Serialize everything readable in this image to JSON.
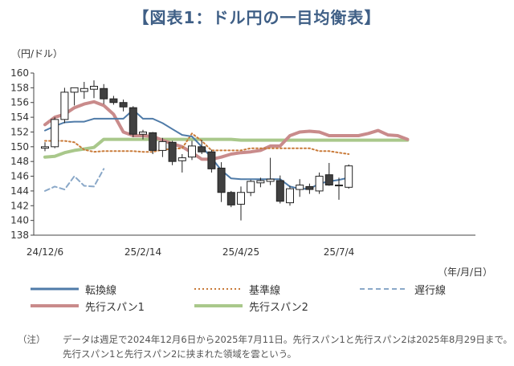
{
  "page_title": "【図表1：ドル円の一目均衡表】",
  "note": {
    "label": "（注）",
    "text": "データは週足で2024年12月6日から2025年7月11日。先行スパン1と先行スパン2は2025年8月29日まで。先行スパン1と先行スパン2に挟まれた領域を雲という。"
  },
  "colors": {
    "up_candle": "#ffffff",
    "down_candle": "#404040",
    "tenkan": "#4f7ba8",
    "kijun": "#c97b3a",
    "chikou": "#8aa8c8",
    "span1": "#c98b8b",
    "span2": "#a9c88b"
  },
  "chart_data": {
    "type": "candlestick",
    "ylabel": "（円/ドル）",
    "xlabel": "（年/月/日）",
    "ylim": [
      138,
      160
    ],
    "y_ticks": [
      138,
      140,
      142,
      144,
      146,
      148,
      150,
      152,
      154,
      156,
      158,
      160
    ],
    "x_ticks": [
      {
        "index": 0,
        "label": "24/12/6"
      },
      {
        "index": 10,
        "label": "25/2/14"
      },
      {
        "index": 20,
        "label": "25/4/25"
      },
      {
        "index": 30,
        "label": "25/7/4"
      }
    ],
    "total_periods": 38,
    "candles": [
      {
        "open": 149.8,
        "high": 150.6,
        "low": 149.4,
        "close": 150.0
      },
      {
        "open": 150.0,
        "high": 154.0,
        "low": 149.8,
        "close": 153.7
      },
      {
        "open": 153.7,
        "high": 158.0,
        "low": 153.2,
        "close": 157.4
      },
      {
        "open": 157.4,
        "high": 158.0,
        "low": 155.6,
        "close": 158.0
      },
      {
        "open": 157.5,
        "high": 158.8,
        "low": 156.5,
        "close": 157.9
      },
      {
        "open": 157.8,
        "high": 159.0,
        "low": 156.6,
        "close": 158.2
      },
      {
        "open": 157.9,
        "high": 158.5,
        "low": 155.8,
        "close": 156.5
      },
      {
        "open": 156.5,
        "high": 156.9,
        "low": 155.7,
        "close": 156.0
      },
      {
        "open": 156.0,
        "high": 156.4,
        "low": 154.8,
        "close": 155.4
      },
      {
        "open": 155.3,
        "high": 155.5,
        "low": 151.3,
        "close": 151.7
      },
      {
        "open": 151.7,
        "high": 152.3,
        "low": 151.0,
        "close": 152.0
      },
      {
        "open": 151.9,
        "high": 152.0,
        "low": 149.0,
        "close": 149.5
      },
      {
        "open": 149.5,
        "high": 151.2,
        "low": 148.6,
        "close": 150.7
      },
      {
        "open": 150.6,
        "high": 150.8,
        "low": 147.5,
        "close": 148.0
      },
      {
        "open": 148.1,
        "high": 149.0,
        "low": 146.5,
        "close": 148.5
      },
      {
        "open": 148.6,
        "high": 150.8,
        "low": 148.2,
        "close": 150.1
      },
      {
        "open": 150.0,
        "high": 150.9,
        "low": 149.0,
        "close": 149.3
      },
      {
        "open": 149.3,
        "high": 149.6,
        "low": 146.5,
        "close": 147.0
      },
      {
        "open": 147.1,
        "high": 147.9,
        "low": 142.5,
        "close": 143.8
      },
      {
        "open": 143.8,
        "high": 144.0,
        "low": 141.8,
        "close": 142.1
      },
      {
        "open": 142.2,
        "high": 144.6,
        "low": 140.0,
        "close": 143.8
      },
      {
        "open": 143.8,
        "high": 145.5,
        "low": 143.3,
        "close": 145.3
      },
      {
        "open": 145.1,
        "high": 145.8,
        "low": 144.5,
        "close": 145.4
      },
      {
        "open": 145.3,
        "high": 148.5,
        "low": 144.8,
        "close": 145.6
      },
      {
        "open": 145.4,
        "high": 146.1,
        "low": 142.3,
        "close": 142.6
      },
      {
        "open": 142.4,
        "high": 144.7,
        "low": 142.0,
        "close": 144.3
      },
      {
        "open": 144.2,
        "high": 145.6,
        "low": 143.2,
        "close": 144.8
      },
      {
        "open": 144.6,
        "high": 145.0,
        "low": 143.6,
        "close": 144.2
      },
      {
        "open": 144.0,
        "high": 146.5,
        "low": 143.6,
        "close": 146.0
      },
      {
        "open": 146.2,
        "high": 147.8,
        "low": 144.7,
        "close": 144.8
      },
      {
        "open": 144.8,
        "high": 145.8,
        "low": 142.8,
        "close": 144.7
      },
      {
        "open": 144.5,
        "high": 147.6,
        "low": 144.3,
        "close": 147.4
      }
    ],
    "series": [
      {
        "name": "転換線",
        "key": "tenkan",
        "style": "solid",
        "values": [
          152.2,
          152.8,
          153.3,
          153.4,
          153.4,
          153.8,
          153.8,
          153.8,
          153.8,
          155.0,
          153.8,
          153.8,
          153.2,
          152.4,
          151.6,
          151.4,
          150.0,
          148.5,
          146.8,
          145.7,
          145.6,
          145.6,
          145.6,
          145.6,
          145.6,
          144.6,
          144.3,
          144.3,
          145.0,
          145.3,
          145.5,
          145.8
        ]
      },
      {
        "name": "基準線",
        "key": "kijun",
        "style": "dotted",
        "values": [
          150.8,
          150.8,
          150.8,
          150.6,
          149.6,
          149.3,
          149.4,
          149.4,
          149.4,
          149.4,
          149.3,
          149.3,
          149.6,
          149.7,
          149.8,
          151.8,
          150.8,
          149.5,
          149.5,
          149.5,
          149.5,
          149.8,
          149.8,
          149.8,
          149.8,
          149.8,
          149.8,
          149.8,
          149.4,
          149.4,
          149.2,
          149.0
        ]
      },
      {
        "name": "遅行線",
        "key": "chikou",
        "style": "dashed",
        "values": [
          144.0,
          144.6,
          144.2,
          146.0,
          144.7,
          144.6,
          147.0
        ]
      },
      {
        "name": "先行スパン1",
        "key": "span1",
        "style": "solid",
        "values": [
          153.0,
          154.0,
          154.4,
          155.3,
          155.8,
          156.1,
          155.6,
          154.4,
          152.0,
          151.5,
          151.5,
          151.4,
          150.9,
          150.4,
          150.0,
          149.2,
          148.3,
          148.3,
          148.6,
          149.0,
          149.2,
          149.3,
          149.5,
          150.1,
          150.1,
          151.5,
          152.0,
          152.1,
          152.0,
          151.5,
          151.5,
          151.5,
          151.5,
          151.8,
          152.2,
          151.6,
          151.5,
          151.0
        ]
      },
      {
        "name": "先行スパン2",
        "key": "span2",
        "style": "solid",
        "values": [
          148.6,
          148.7,
          149.2,
          149.5,
          149.7,
          149.9,
          151.0,
          151.0,
          151.0,
          151.0,
          151.0,
          151.0,
          151.0,
          151.0,
          151.0,
          151.0,
          151.0,
          151.0,
          151.0,
          151.0,
          150.9,
          150.9,
          150.9,
          150.9,
          150.9,
          150.9,
          150.9,
          150.9,
          150.9,
          150.9,
          150.9,
          150.9,
          150.9,
          150.9,
          150.9,
          150.9,
          150.9,
          150.9
        ]
      }
    ]
  }
}
